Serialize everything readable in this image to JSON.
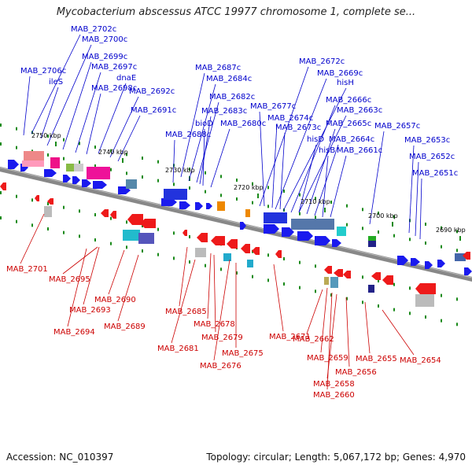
{
  "title": "Mycobacterium abscessus ATCC 19977 chromosome 1, complete se...",
  "footer": {
    "accession": "Accession: NC_010397",
    "topology": "Topology: circular; Length: 5,067,172 bp; Genes: 4,970"
  },
  "colors": {
    "forward_label": "#0000cc",
    "reverse_label": "#cc0000",
    "forward_gene": "#1a1aee",
    "reverse_gene": "#ee1a1a",
    "backbone": "#888888",
    "tick": "#1a8a1a"
  },
  "kbp_labels": [
    "2750 kbp",
    "2740 kbp",
    "2730 kbp",
    "2720 kbp",
    "2710 kbp",
    "2700 kbp",
    "2690 kbp"
  ],
  "forward_labels": [
    "MAB_2702c",
    "MAB_2700c",
    "MAB_2699c",
    "MAB_2697c",
    "MAB_2706c",
    "ileS",
    "dnaE",
    "MAB_2698c",
    "MAB_2692c",
    "MAB_2691c",
    "MAB_2687c",
    "MAB_2684c",
    "MAB_2682c",
    "MAB_2683c",
    "bioD",
    "MAB_2680c",
    "MAB_2688c",
    "MAB_2672c",
    "MAB_2669c",
    "hisH",
    "MAB_2666c",
    "MAB_2677c",
    "MAB_2663c",
    "MAB_2674c",
    "MAB_2665c",
    "MAB_2673c",
    "MAB_2657c",
    "MAB_2664c",
    "hisD",
    "hisB",
    "MAB_2661c",
    "MAB_2653c",
    "MAB_2652c",
    "MAB_2651c"
  ],
  "reverse_labels": [
    "MAB_2701",
    "MAB_2695",
    "MAB_2690",
    "MAB_2693",
    "MAB_2694",
    "MAB_2689",
    "MAB_2685",
    "MAB_2678",
    "MAB_2679",
    "MAB_2681",
    "MAB_2675",
    "MAB_2676",
    "MAB_2671",
    "MAB_2662",
    "MAB_2659",
    "MAB_2655",
    "MAB_2654",
    "MAB_2656",
    "MAB_2658",
    "MAB_2660"
  ]
}
